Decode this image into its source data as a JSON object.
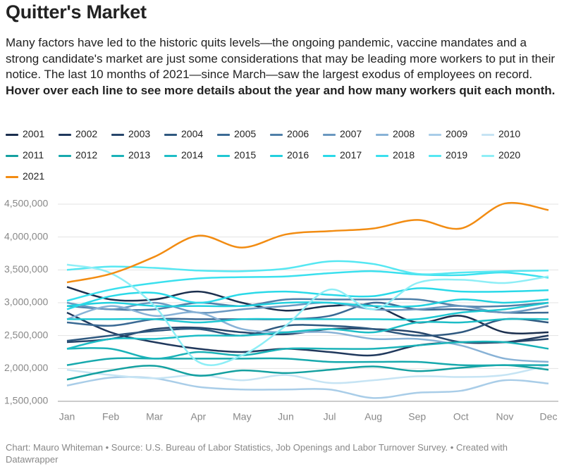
{
  "chart_data": {
    "type": "line",
    "title": "Quitter's Market",
    "description": "Many factors have led to the historic quits levels—the ongoing pandemic, vaccine mandates and a strong candidate's market are just some considerations that may be leading more workers to put in their notice. The last 10 months of 2021—since March—saw the largest exodus of employees on record. ",
    "description_bold": "Hover over each line to see more details about the year and how many workers quit each month.",
    "note": "Chart: Mauro Whiteman • Source: U.S. Bureau of Labor Statistics, Job Openings and Labor Turnover Survey. • Created with Datawrapper",
    "categories": [
      "Jan",
      "Feb",
      "Mar",
      "Apr",
      "May",
      "Jun",
      "Jul",
      "Aug",
      "Sep",
      "Oct",
      "Nov",
      "Dec"
    ],
    "ylim": [
      1500000,
      4500000
    ],
    "yticks": [
      {
        "value": 1500000,
        "label": "1,500,000"
      },
      {
        "value": 2000000,
        "label": "2,000,000"
      },
      {
        "value": 2500000,
        "label": "2,500,000"
      },
      {
        "value": 3000000,
        "label": "3,000,000"
      },
      {
        "value": 3500000,
        "label": "3,500,000"
      },
      {
        "value": 4000000,
        "label": "4,000,000"
      },
      {
        "value": 4500000,
        "label": "4,500,000"
      }
    ],
    "grid": true,
    "series": [
      {
        "name": "2001",
        "color": "#1b2f4e",
        "values": [
          3240000,
          3050000,
          3050000,
          3170000,
          3000000,
          2880000,
          2950000,
          2950000,
          2700000,
          2800000,
          2550000,
          2550000
        ]
      },
      {
        "name": "2002",
        "color": "#20385c",
        "values": [
          2850000,
          2550000,
          2400000,
          2300000,
          2250000,
          2300000,
          2250000,
          2200000,
          2350000,
          2400000,
          2400000,
          2500000
        ]
      },
      {
        "name": "2003",
        "color": "#27466b",
        "values": [
          2400000,
          2450000,
          2600000,
          2620000,
          2550000,
          2520000,
          2600000,
          2600000,
          2550000,
          2400000,
          2400000,
          2450000
        ]
      },
      {
        "name": "2004",
        "color": "#2f587f",
        "values": [
          2420000,
          2500000,
          2570000,
          2600000,
          2500000,
          2650000,
          2650000,
          2600000,
          2500000,
          2550000,
          2750000,
          2700000
        ]
      },
      {
        "name": "2005",
        "color": "#3b6a94",
        "values": [
          2700000,
          2650000,
          2750000,
          2750000,
          2750000,
          2750000,
          2800000,
          3000000,
          2900000,
          2900000,
          2850000,
          2850000
        ]
      },
      {
        "name": "2006",
        "color": "#4f7fa8",
        "values": [
          2950000,
          2900000,
          2900000,
          3000000,
          2950000,
          3050000,
          3050000,
          3050000,
          3050000,
          2950000,
          2950000,
          3000000
        ]
      },
      {
        "name": "2007",
        "color": "#6a98c0",
        "values": [
          3000000,
          2900000,
          3000000,
          2850000,
          2900000,
          2950000,
          3000000,
          2900000,
          2900000,
          2950000,
          2850000,
          2950000
        ]
      },
      {
        "name": "2008",
        "color": "#88b2d6",
        "values": [
          2750000,
          2950000,
          2800000,
          2850000,
          2600000,
          2550000,
          2550000,
          2450000,
          2450000,
          2350000,
          2150000,
          2100000
        ]
      },
      {
        "name": "2009",
        "color": "#a9cde8",
        "values": [
          1740000,
          1860000,
          1850000,
          1720000,
          1680000,
          1680000,
          1680000,
          1550000,
          1630000,
          1660000,
          1820000,
          1770000
        ]
      },
      {
        "name": "2010",
        "color": "#c6e4f4",
        "values": [
          1980000,
          1900000,
          1850000,
          1900000,
          1820000,
          1900000,
          1780000,
          1820000,
          1880000,
          1870000,
          1900000,
          2050000
        ]
      },
      {
        "name": "2011",
        "color": "#14a0a0",
        "values": [
          1830000,
          1970000,
          2040000,
          1890000,
          1970000,
          1930000,
          1980000,
          2030000,
          1960000,
          2010000,
          2050000,
          1980000
        ]
      },
      {
        "name": "2012",
        "color": "#17a9ad",
        "values": [
          2050000,
          2150000,
          2150000,
          2150000,
          2150000,
          2150000,
          2100000,
          2100000,
          2100000,
          2050000,
          2050000,
          2050000
        ]
      },
      {
        "name": "2013",
        "color": "#1ab2b8",
        "values": [
          2300000,
          2300000,
          2150000,
          2250000,
          2200000,
          2300000,
          2300000,
          2300000,
          2350000,
          2400000,
          2400000,
          2300000
        ]
      },
      {
        "name": "2014",
        "color": "#1dbdc6",
        "values": [
          2300000,
          2450000,
          2450000,
          2500000,
          2500000,
          2550000,
          2600000,
          2550000,
          2700000,
          2700000,
          2750000,
          2750000
        ]
      },
      {
        "name": "2015",
        "color": "#1fc7d2",
        "values": [
          2750000,
          2750000,
          2750000,
          2700000,
          2750000,
          2750000,
          2750000,
          2750000,
          2750000,
          2850000,
          2900000,
          3000000
        ]
      },
      {
        "name": "2016",
        "color": "#22d0de",
        "values": [
          2950000,
          3000000,
          2950000,
          2950000,
          2950000,
          3000000,
          3000000,
          2950000,
          2950000,
          3050000,
          3000000,
          3050000
        ]
      },
      {
        "name": "2017",
        "color": "#2ad9e8",
        "values": [
          2900000,
          3100000,
          3150000,
          3000000,
          3130000,
          3170000,
          3120000,
          3100000,
          3220000,
          3170000,
          3170000,
          3190000
        ]
      },
      {
        "name": "2018",
        "color": "#3ae0ee",
        "values": [
          3030000,
          3200000,
          3300000,
          3370000,
          3390000,
          3400000,
          3450000,
          3480000,
          3430000,
          3420000,
          3460000,
          3380000
        ]
      },
      {
        "name": "2019",
        "color": "#55e7f2",
        "values": [
          3500000,
          3550000,
          3530000,
          3490000,
          3480000,
          3520000,
          3630000,
          3590000,
          3440000,
          3460000,
          3480000,
          3490000
        ]
      },
      {
        "name": "2020",
        "color": "#8eeef6",
        "values": [
          3580000,
          3450000,
          2950000,
          2100000,
          2200000,
          2650000,
          3200000,
          2900000,
          3300000,
          3350000,
          3300000,
          3400000
        ]
      },
      {
        "name": "2021",
        "color": "#f28c12",
        "values": [
          3310000,
          3440000,
          3700000,
          4020000,
          3840000,
          4040000,
          4090000,
          4130000,
          4260000,
          4130000,
          4510000,
          4410000
        ]
      }
    ]
  }
}
